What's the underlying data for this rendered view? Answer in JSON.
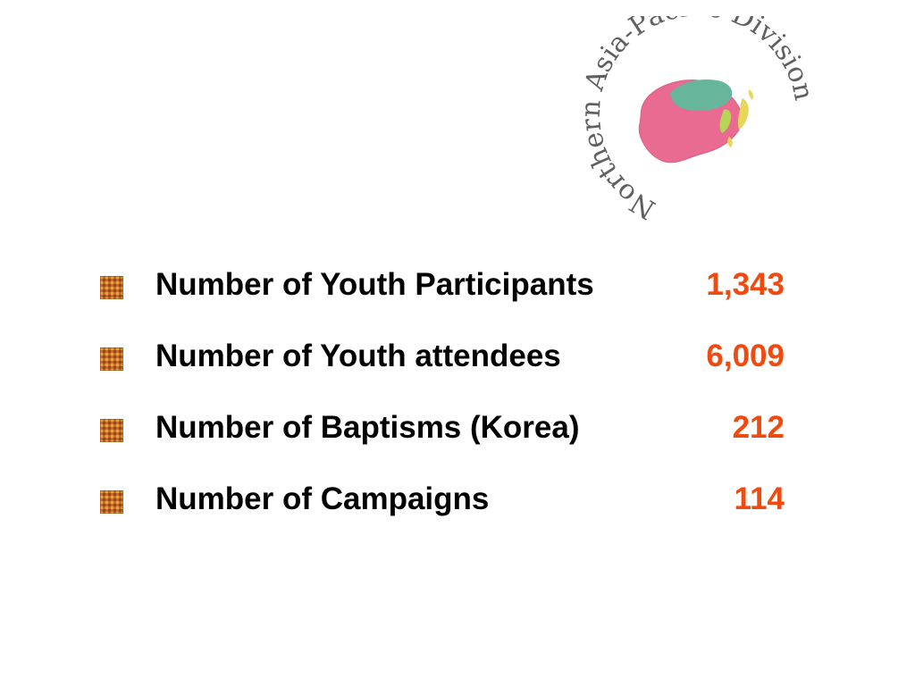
{
  "logo": {
    "text": "Northern Asia-Pacific Division",
    "colors": {
      "map_main": "#ea6b92",
      "map_north": "#67b59a",
      "peninsula": "#b6d456",
      "islands": "#e8d65a",
      "text": "#5f5f5f"
    }
  },
  "bullet_icon": "textured-square-bullet-icon",
  "stats": [
    {
      "label": "Number of Youth Participants",
      "value": "1,343"
    },
    {
      "label": "Number of Youth attendees",
      "value": "6,009"
    },
    {
      "label": "Number of Baptisms (Korea)",
      "value": "212"
    },
    {
      "label": "Number of Campaigns",
      "value": "114"
    }
  ]
}
